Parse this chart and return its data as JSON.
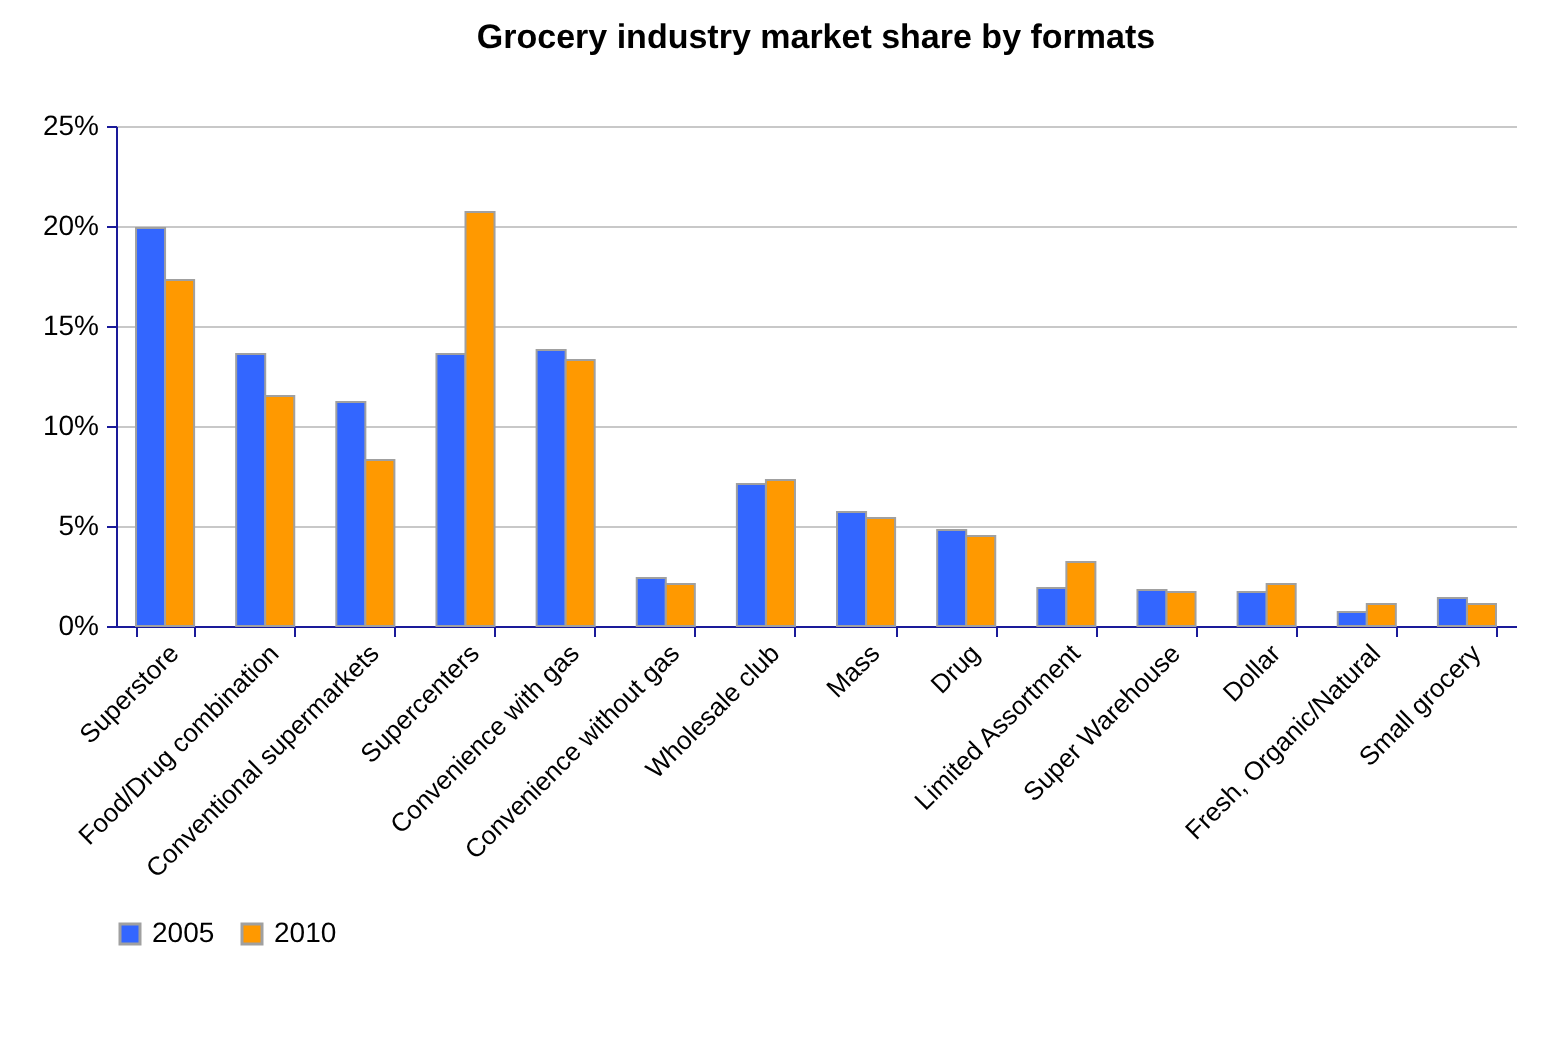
{
  "chart_data": {
    "type": "bar",
    "title": "Grocery industry market share by formats",
    "categories": [
      "Superstore",
      "Food/Drug combination",
      "Conventional supermarkets",
      "Supercenters",
      "Convenience with gas",
      "Convenience without gas",
      "Wholesale club",
      "Mass",
      "Drug",
      "Limited Assortment",
      "Super Warehouse",
      "Dollar",
      "Fresh, Organic/Natural",
      "Small grocery"
    ],
    "series": [
      {
        "name": "2005",
        "color": "#3366ff",
        "values": [
          19.9,
          13.6,
          11.2,
          13.6,
          13.8,
          2.4,
          7.1,
          5.7,
          4.8,
          1.9,
          1.8,
          1.7,
          0.7,
          1.4
        ]
      },
      {
        "name": "2010",
        "color": "#ff9900",
        "values": [
          17.3,
          11.5,
          8.3,
          20.7,
          13.3,
          2.1,
          7.3,
          5.4,
          4.5,
          3.2,
          1.7,
          2.1,
          1.1,
          1.1
        ]
      }
    ],
    "ylim": [
      0,
      25
    ],
    "yticks": [
      {
        "value": 0,
        "label": "0%"
      },
      {
        "value": 5,
        "label": "5%"
      },
      {
        "value": 10,
        "label": "10%"
      },
      {
        "value": 15,
        "label": "15%"
      },
      {
        "value": 20,
        "label": "20%"
      },
      {
        "value": 25,
        "label": "25%"
      }
    ],
    "grid": "y",
    "legend": "bottom"
  }
}
